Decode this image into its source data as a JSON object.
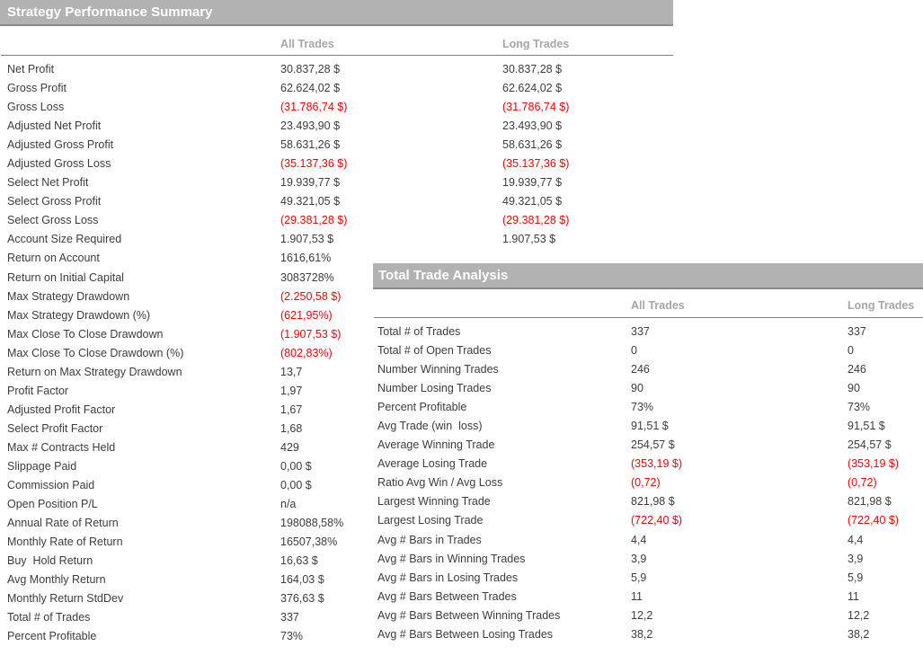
{
  "colors": {
    "panel_header_bg": "#b2b2b2",
    "panel_header_text": "#ffffff",
    "column_header_text": "#a6a6a6",
    "row_text": "#3d3d3d",
    "negative_value": "#ff0000",
    "rule_line": "#808080"
  },
  "summary_panel": {
    "title": "Strategy Performance Summary",
    "columns": [
      "All Trades",
      "Long Trades"
    ],
    "rows": [
      {
        "label": "Net Profit",
        "all": "30.837,28 $",
        "long": "30.837,28 $",
        "neg": false
      },
      {
        "label": "Gross Profit",
        "all": "62.624,02 $",
        "long": "62.624,02 $",
        "neg": false
      },
      {
        "label": "Gross Loss",
        "all": "(31.786,74 $)",
        "long": "(31.786,74 $)",
        "neg": true
      },
      {
        "label": "Adjusted Net Profit",
        "all": "23.493,90 $",
        "long": "23.493,90 $",
        "neg": false
      },
      {
        "label": "Adjusted Gross Profit",
        "all": "58.631,26 $",
        "long": "58.631,26 $",
        "neg": false
      },
      {
        "label": "Adjusted Gross Loss",
        "all": "(35.137,36 $)",
        "long": "(35.137,36 $)",
        "neg": true
      },
      {
        "label": "Select Net Profit",
        "all": "19.939,77 $",
        "long": "19.939,77 $",
        "neg": false
      },
      {
        "label": "Select Gross Profit",
        "all": "49.321,05 $",
        "long": "49.321,05 $",
        "neg": false
      },
      {
        "label": "Select Gross Loss",
        "all": "(29.381,28 $)",
        "long": "(29.381,28 $)",
        "neg": true
      },
      {
        "label": "Account Size Required",
        "all": "1.907,53 $",
        "long": "1.907,53 $",
        "neg": false
      },
      {
        "label": "Return on Account",
        "all": "1616,61%",
        "long": "",
        "neg": false
      },
      {
        "label": "Return on Initial Capital",
        "all": "3083728%",
        "long": "",
        "neg": false
      },
      {
        "label": "Max Strategy Drawdown",
        "all": "(2.250,58 $)",
        "long": "",
        "neg": true
      },
      {
        "label": "Max Strategy Drawdown (%)",
        "all": "(621,95%)",
        "long": "",
        "neg": true
      },
      {
        "label": "Max Close To Close Drawdown",
        "all": "(1.907,53 $)",
        "long": "",
        "neg": true
      },
      {
        "label": "Max Close To Close Drawdown (%)",
        "all": "(802,83%)",
        "long": "",
        "neg": true
      },
      {
        "label": "Return on Max Strategy Drawdown",
        "all": "13,7",
        "long": "",
        "neg": false
      },
      {
        "label": "Profit Factor",
        "all": "1,97",
        "long": "",
        "neg": false
      },
      {
        "label": "Adjusted Profit Factor",
        "all": "1,67",
        "long": "",
        "neg": false
      },
      {
        "label": "Select Profit Factor",
        "all": "1,68",
        "long": "",
        "neg": false
      },
      {
        "label": "Max # Contracts Held",
        "all": "429",
        "long": "",
        "neg": false
      },
      {
        "label": "Slippage Paid",
        "all": "0,00 $",
        "long": "",
        "neg": false
      },
      {
        "label": "Commission Paid",
        "all": "0,00 $",
        "long": "",
        "neg": false
      },
      {
        "label": "Open Position P/L",
        "all": "n/a",
        "long": "",
        "neg": false
      },
      {
        "label": "Annual Rate of Return",
        "all": "198088,58%",
        "long": "",
        "neg": false
      },
      {
        "label": "Monthly Rate of Return",
        "all": "16507,38%",
        "long": "",
        "neg": false
      },
      {
        "label": "Buy  Hold Return",
        "all": "16,63 $",
        "long": "",
        "neg": false
      },
      {
        "label": "Avg Monthly Return",
        "all": "164,03 $",
        "long": "",
        "neg": false
      },
      {
        "label": "Monthly Return StdDev",
        "all": "376,63 $",
        "long": "",
        "neg": false
      },
      {
        "label": "Total # of Trades",
        "all": "337",
        "long": "",
        "neg": false
      },
      {
        "label": "Percent Profitable",
        "all": "73%",
        "long": "",
        "neg": false
      }
    ]
  },
  "analysis_panel": {
    "title": "Total Trade Analysis",
    "columns": [
      "All Trades",
      "Long Trades"
    ],
    "rows": [
      {
        "label": "Total # of Trades",
        "all": "337",
        "long": "337",
        "neg": false
      },
      {
        "label": "Total # of Open Trades",
        "all": "0",
        "long": "0",
        "neg": false
      },
      {
        "label": "Number Winning Trades",
        "all": "246",
        "long": "246",
        "neg": false
      },
      {
        "label": "Number Losing Trades",
        "all": "90",
        "long": "90",
        "neg": false
      },
      {
        "label": "Percent Profitable",
        "all": "73%",
        "long": "73%",
        "neg": false
      },
      {
        "label": "Avg Trade (win  loss)",
        "all": "91,51 $",
        "long": "91,51 $",
        "neg": false
      },
      {
        "label": "Average Winning Trade",
        "all": "254,57 $",
        "long": "254,57 $",
        "neg": false
      },
      {
        "label": "Average Losing Trade",
        "all": "(353,19 $)",
        "long": "(353,19 $)",
        "neg": true
      },
      {
        "label": "Ratio Avg Win / Avg Loss",
        "all": "(0,72)",
        "long": "(0,72)",
        "neg": true
      },
      {
        "label": "Largest Winning Trade",
        "all": "821,98 $",
        "long": "821,98 $",
        "neg": false
      },
      {
        "label": "Largest Losing Trade",
        "all": "(722,40 $)",
        "long": "(722,40 $)",
        "neg": true
      },
      {
        "label": "Avg # Bars in Trades",
        "all": "4,4",
        "long": "4,4",
        "neg": false
      },
      {
        "label": "Avg # Bars in Winning Trades",
        "all": "3,9",
        "long": "3,9",
        "neg": false
      },
      {
        "label": "Avg # Bars in Losing Trades",
        "all": "5,9",
        "long": "5,9",
        "neg": false
      },
      {
        "label": "Avg # Bars Between Trades",
        "all": "11",
        "long": "11",
        "neg": false
      },
      {
        "label": "Avg # Bars Between Winning Trades",
        "all": "12,2",
        "long": "12,2",
        "neg": false
      },
      {
        "label": "Avg # Bars Between Losing Trades",
        "all": "38,2",
        "long": "38,2",
        "neg": false
      }
    ]
  }
}
